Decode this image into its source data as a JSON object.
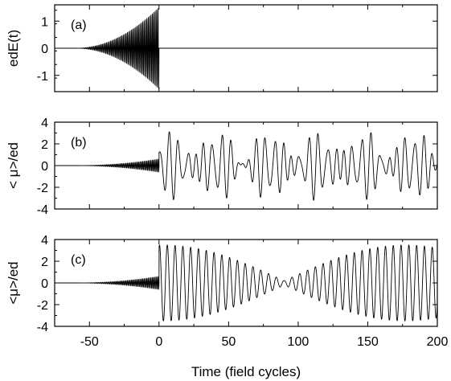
{
  "figure": {
    "xlabel": "Time (field cycles)",
    "x_tick_labels": [
      "-50",
      "0",
      "50",
      "100",
      "150",
      "200"
    ],
    "line_color": "#000000",
    "background": "#ffffff"
  },
  "chart_data": [
    {
      "type": "line",
      "panel_label": "(a)",
      "ylabel": "edE(t)",
      "xlim": [
        -75,
        200
      ],
      "ylim": [
        -1.6,
        1.6
      ],
      "y_ticks": [
        -1,
        0,
        1
      ],
      "y_tick_labels": [
        "-1",
        "0",
        "1"
      ],
      "grid": false,
      "description_of_trace": "driving field oscillating with envelope rising from 0 to amplitude 1.5 over t=-60..0, then zero for t>0",
      "envelope_points": {
        "x": [
          -60,
          -40,
          -20,
          -10,
          0,
          200
        ],
        "y": [
          0.0,
          0.17,
          0.67,
          1.1,
          1.5,
          0.0
        ]
      }
    },
    {
      "type": "line",
      "panel_label": "(b)",
      "ylabel": "< μ>/ed",
      "xlim": [
        -75,
        200
      ],
      "ylim": [
        -4,
        4
      ],
      "y_ticks": [
        -4,
        -2,
        0,
        2,
        4
      ],
      "y_tick_labels": [
        "-4",
        "-2",
        "0",
        "2",
        "4"
      ],
      "grid": false,
      "description_of_trace": "small growing oscillation for t<0 (amplitude up to ~0.6), then irregular beating oscillation for t>0 with amplitude ~2-3.3",
      "envelope_points": {
        "x": [
          -60,
          -30,
          0,
          3,
          50,
          100,
          150,
          200
        ],
        "y": [
          0.0,
          0.15,
          0.6,
          3.3,
          2.6,
          2.6,
          2.5,
          2.2
        ]
      }
    },
    {
      "type": "line",
      "panel_label": "(c)",
      "ylabel": "<μ>/ed",
      "xlim": [
        -75,
        200
      ],
      "ylim": [
        -4,
        4
      ],
      "y_ticks": [
        -4,
        -2,
        0,
        2,
        4
      ],
      "y_tick_labels": [
        "-4",
        "-2",
        "0",
        "2",
        "4"
      ],
      "grid": false,
      "description_of_trace": "small growing oscillation for t<0, then regular oscillation with amplitude ~3.7 decaying to ~0.2 near t=90 and reviving to ~3.8 near t=180",
      "envelope_points": {
        "x": [
          -60,
          -30,
          0,
          3,
          50,
          90,
          130,
          180,
          200
        ],
        "y": [
          0.0,
          0.15,
          0.6,
          3.7,
          2.8,
          0.2,
          2.6,
          3.8,
          3.2
        ]
      }
    }
  ]
}
